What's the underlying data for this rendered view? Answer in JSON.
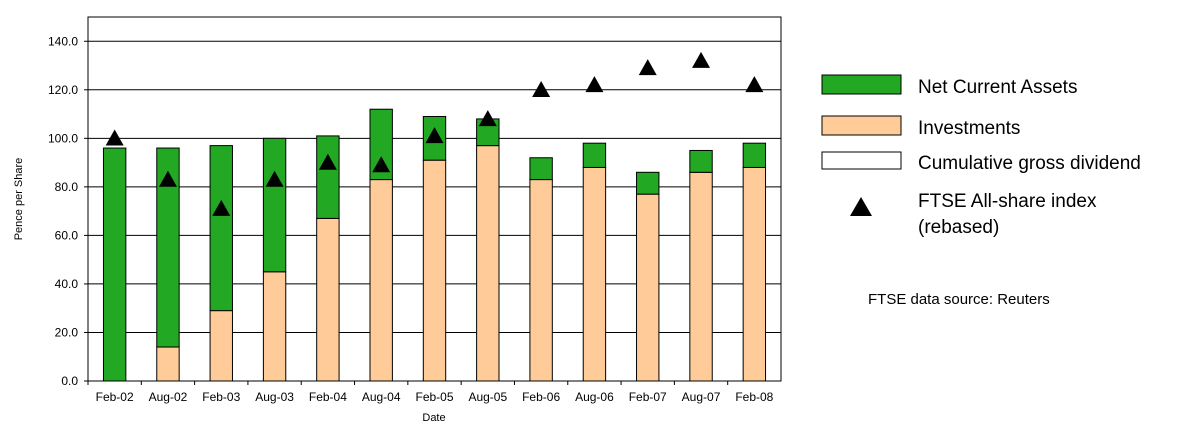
{
  "chart_data": {
    "type": "bar",
    "stacked": true,
    "title": "",
    "xlabel": "Date",
    "ylabel": "Pence per Share",
    "ylim": [
      0,
      150
    ],
    "yticks": [
      "0.0",
      "20.0",
      "40.0",
      "60.0",
      "80.0",
      "100.0",
      "120.0",
      "140.0"
    ],
    "grid": true,
    "legend_position": "right",
    "categories": [
      "Feb-02",
      "Aug-02",
      "Feb-03",
      "Aug-03",
      "Feb-04",
      "Aug-04",
      "Feb-05",
      "Aug-05",
      "Feb-06",
      "Aug-06",
      "Feb-07",
      "Aug-07",
      "Feb-08"
    ],
    "series": [
      {
        "name": "Net Current Assets",
        "type": "bar",
        "color": "#22a822",
        "values": [
          96,
          82,
          68,
          55,
          34,
          29,
          18,
          11,
          9,
          10,
          9,
          9,
          10
        ]
      },
      {
        "name": "Investments",
        "type": "bar",
        "color": "#ffcc99",
        "values": [
          0,
          14,
          29,
          45,
          67,
          83,
          91,
          97,
          83,
          88,
          77,
          86,
          88
        ]
      },
      {
        "name": "Cumulative gross dividend",
        "type": "bar",
        "color": "#ffffff",
        "values": [
          0,
          0,
          0,
          0,
          0,
          0,
          0,
          0,
          0,
          0,
          0,
          0,
          0
        ]
      },
      {
        "name": "FTSE All-share index (rebased)",
        "type": "scatter",
        "marker": "triangle",
        "color": "#000000",
        "values": [
          100,
          83,
          71,
          83,
          90,
          89,
          101,
          108,
          120,
          122,
          129,
          132,
          122
        ]
      }
    ],
    "legend": {
      "nca_label": "Net Current Assets",
      "inv_label": "Investments",
      "div_label": "Cumulative gross dividend",
      "ftse_label_line1": "FTSE All-share index",
      "ftse_label_line2": "(rebased)"
    },
    "note": "FTSE data source: Reuters"
  }
}
